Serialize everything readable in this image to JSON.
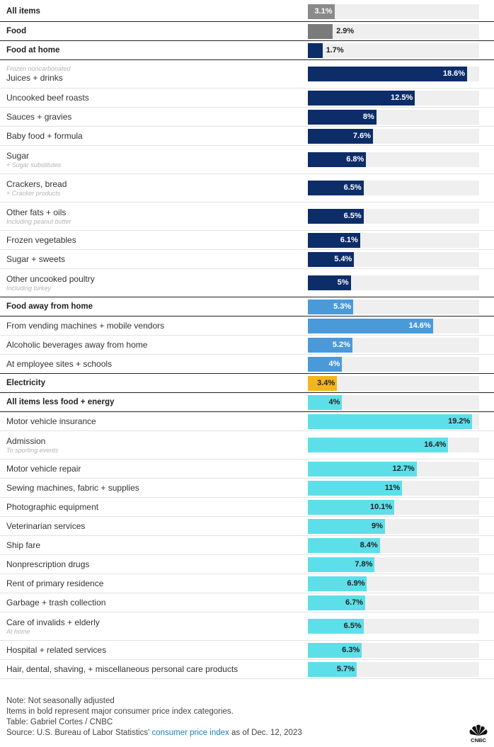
{
  "chart_data": {
    "type": "bar",
    "orientation": "horizontal",
    "value_suffix": "%",
    "xlim": [
      0,
      20
    ],
    "colors": {
      "all": "#8a8a8a",
      "food_home": "#0d2d69",
      "food_away": "#4a9ad9",
      "electricity": "#f2b51c",
      "core": "#5ddfe9"
    },
    "rows": [
      {
        "label": "All items",
        "value": 3.1,
        "display": "3.1%",
        "bold": true,
        "group": "all",
        "color": "#8a8a8a",
        "text_color": "#ffffff",
        "inside": true
      },
      {
        "label": "Food",
        "value": 2.9,
        "display": "2.9%",
        "bold": true,
        "group": "all",
        "color": "#7a7a7a",
        "text_color": "#222222",
        "inside": false
      },
      {
        "label": "Food at home",
        "value": 1.7,
        "display": "1.7%",
        "bold": true,
        "group": "food_home",
        "color": "#0d2d69",
        "text_color": "#222222",
        "inside": false
      },
      {
        "label": "Juices + drinks",
        "pre_note": "Frozen noncarbonated",
        "value": 18.6,
        "display": "18.6%",
        "group": "food_home",
        "color": "#0d2d69",
        "text_color": "#ffffff",
        "inside": true
      },
      {
        "label": "Uncooked beef roasts",
        "value": 12.5,
        "display": "12.5%",
        "group": "food_home",
        "color": "#0d2d69",
        "text_color": "#ffffff",
        "inside": true
      },
      {
        "label": "Sauces + gravies",
        "value": 8,
        "display": "8%",
        "group": "food_home",
        "color": "#0d2d69",
        "text_color": "#ffffff",
        "inside": true
      },
      {
        "label": "Baby food + formula",
        "value": 7.6,
        "display": "7.6%",
        "group": "food_home",
        "color": "#0d2d69",
        "text_color": "#ffffff",
        "inside": true
      },
      {
        "label": "Sugar",
        "note": "+ Sugar substitutes",
        "value": 6.8,
        "display": "6.8%",
        "group": "food_home",
        "color": "#0d2d69",
        "text_color": "#ffffff",
        "inside": true
      },
      {
        "label": "Crackers, bread",
        "note": "+ Cracker products",
        "value": 6.5,
        "display": "6.5%",
        "group": "food_home",
        "color": "#0d2d69",
        "text_color": "#ffffff",
        "inside": true
      },
      {
        "label": "Other fats + oils",
        "note": "Including peanut butter",
        "value": 6.5,
        "display": "6.5%",
        "group": "food_home",
        "color": "#0d2d69",
        "text_color": "#ffffff",
        "inside": true
      },
      {
        "label": "Frozen vegetables",
        "value": 6.1,
        "display": "6.1%",
        "group": "food_home",
        "color": "#0d2d69",
        "text_color": "#ffffff",
        "inside": true
      },
      {
        "label": "Sugar + sweets",
        "value": 5.4,
        "display": "5.4%",
        "group": "food_home",
        "color": "#0d2d69",
        "text_color": "#ffffff",
        "inside": true
      },
      {
        "label": "Other uncooked poultry",
        "note": "Including turkey",
        "value": 5,
        "display": "5%",
        "group": "food_home",
        "color": "#0d2d69",
        "text_color": "#ffffff",
        "inside": true
      },
      {
        "label": "Food away from home",
        "value": 5.3,
        "display": "5.3%",
        "bold": true,
        "group": "food_away",
        "color": "#4a9ad9",
        "text_color": "#ffffff",
        "inside": true
      },
      {
        "label": "From vending machines + mobile vendors",
        "value": 14.6,
        "display": "14.6%",
        "group": "food_away",
        "color": "#4a9ad9",
        "text_color": "#ffffff",
        "inside": true
      },
      {
        "label": "Alcoholic beverages away from home",
        "value": 5.2,
        "display": "5.2%",
        "group": "food_away",
        "color": "#4a9ad9",
        "text_color": "#ffffff",
        "inside": true
      },
      {
        "label": "At employee sites + schools",
        "value": 4,
        "display": "4%",
        "group": "food_away",
        "color": "#4a9ad9",
        "text_color": "#ffffff",
        "inside": true
      },
      {
        "label": "Electricity",
        "value": 3.4,
        "display": "3.4%",
        "bold": true,
        "group": "electricity",
        "color": "#f2b51c",
        "text_color": "#222222",
        "inside": true
      },
      {
        "label": "All items less food + energy",
        "value": 4,
        "display": "4%",
        "bold": true,
        "group": "core",
        "color": "#5ddfe9",
        "text_color": "#222222",
        "inside": true
      },
      {
        "label": "Motor vehicle insurance",
        "value": 19.2,
        "display": "19.2%",
        "group": "core",
        "color": "#5ddfe9",
        "text_color": "#222222",
        "inside": true
      },
      {
        "label": "Admission",
        "note": "To sporting events",
        "value": 16.4,
        "display": "16.4%",
        "group": "core",
        "color": "#5ddfe9",
        "text_color": "#222222",
        "inside": true
      },
      {
        "label": "Motor vehicle repair",
        "value": 12.7,
        "display": "12.7%",
        "group": "core",
        "color": "#5ddfe9",
        "text_color": "#222222",
        "inside": true
      },
      {
        "label": "Sewing machines, fabric + supplies",
        "value": 11,
        "display": "11%",
        "group": "core",
        "color": "#5ddfe9",
        "text_color": "#222222",
        "inside": true
      },
      {
        "label": "Photographic equipment",
        "value": 10.1,
        "display": "10.1%",
        "group": "core",
        "color": "#5ddfe9",
        "text_color": "#222222",
        "inside": true
      },
      {
        "label": "Veterinarian services",
        "value": 9,
        "display": "9%",
        "group": "core",
        "color": "#5ddfe9",
        "text_color": "#222222",
        "inside": true
      },
      {
        "label": "Ship fare",
        "value": 8.4,
        "display": "8.4%",
        "group": "core",
        "color": "#5ddfe9",
        "text_color": "#222222",
        "inside": true
      },
      {
        "label": "Nonprescription drugs",
        "value": 7.8,
        "display": "7.8%",
        "group": "core",
        "color": "#5ddfe9",
        "text_color": "#222222",
        "inside": true
      },
      {
        "label": "Rent of primary residence",
        "value": 6.9,
        "display": "6.9%",
        "group": "core",
        "color": "#5ddfe9",
        "text_color": "#222222",
        "inside": true
      },
      {
        "label": "Garbage + trash collection",
        "value": 6.7,
        "display": "6.7%",
        "group": "core",
        "color": "#5ddfe9",
        "text_color": "#222222",
        "inside": true
      },
      {
        "label": "Care of invalids + elderly",
        "note": "At home",
        "value": 6.5,
        "display": "6.5%",
        "group": "core",
        "color": "#5ddfe9",
        "text_color": "#222222",
        "inside": true
      },
      {
        "label": "Hospital + related services",
        "value": 6.3,
        "display": "6.3%",
        "group": "core",
        "color": "#5ddfe9",
        "text_color": "#222222",
        "inside": true
      },
      {
        "label": "Hair, dental, shaving, + miscellaneous personal care products",
        "value": 5.7,
        "display": "5.7%",
        "group": "core",
        "color": "#5ddfe9",
        "text_color": "#222222",
        "inside": true
      }
    ]
  },
  "footer": {
    "note1": "Note: Not seasonally adjusted",
    "note2": "Items in bold represent major consumer price index categories.",
    "credit": "Table: Gabriel Cortes / CNBC",
    "source_prefix": "Source: U.S. Bureau of Labor Statistics' ",
    "source_link": "consumer price index",
    "source_suffix": " as of Dec. 12, 2023"
  },
  "logo": {
    "name": "CNBC",
    "icon": "peacock-icon"
  }
}
